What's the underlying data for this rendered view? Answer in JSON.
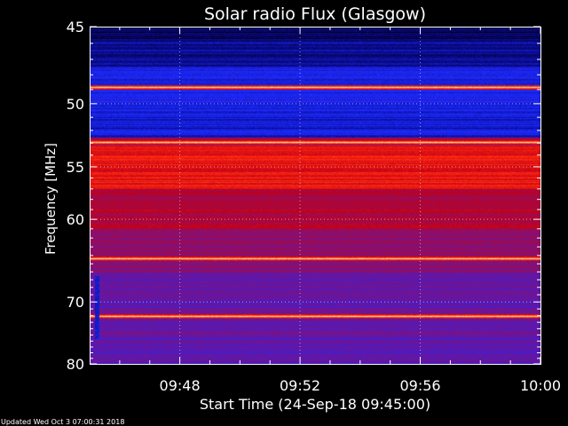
{
  "chart_data": {
    "type": "heatmap",
    "title": "Solar radio Flux (Glasgow)",
    "xlabel": "Start Time (24-Sep-18 09:45:00)",
    "ylabel": "Frequency [MHz]",
    "x_range": [
      "09:45",
      "10:00"
    ],
    "x_ticks": [
      {
        "minute": 48,
        "label": "09:48"
      },
      {
        "minute": 52,
        "label": "09:52"
      },
      {
        "minute": 56,
        "label": "09:56"
      },
      {
        "minute": 60,
        "label": "10:00"
      }
    ],
    "y_range": [
      45,
      80
    ],
    "y_scale": "reciprocal",
    "y_ticks": [
      45,
      50,
      55,
      60,
      70,
      80
    ],
    "colormap": [
      "#000020",
      "#0b0b90",
      "#1a2bff",
      "#5a18b0",
      "#8a1070",
      "#c00018",
      "#ff2810",
      "#ff8a2a",
      "#ffffff"
    ],
    "background_intensity": [
      {
        "from_mhz": 45.0,
        "to_mhz": 45.7,
        "level": 0.05
      },
      {
        "from_mhz": 45.7,
        "to_mhz": 47.5,
        "level": 0.12
      },
      {
        "from_mhz": 47.5,
        "to_mhz": 48.7,
        "level": 0.24
      },
      {
        "from_mhz": 48.7,
        "to_mhz": 50.0,
        "level": 0.24
      },
      {
        "from_mhz": 50.0,
        "to_mhz": 52.5,
        "level": 0.2
      },
      {
        "from_mhz": 52.5,
        "to_mhz": 53.2,
        "level": 0.55
      },
      {
        "from_mhz": 53.2,
        "to_mhz": 57.0,
        "level": 0.7
      },
      {
        "from_mhz": 57.0,
        "to_mhz": 61.0,
        "level": 0.58
      },
      {
        "from_mhz": 61.0,
        "to_mhz": 66.0,
        "level": 0.5
      },
      {
        "from_mhz": 66.0,
        "to_mhz": 80.0,
        "level": 0.4
      }
    ],
    "bright_lines_mhz": [
      48.85,
      52.9,
      64.3,
      72.1
    ],
    "burst": {
      "minute": 45.25,
      "from_mhz": 66.5,
      "to_mhz": 75.5
    },
    "grid": true
  },
  "footer": {
    "updated": "Updated Wed Oct  3 07:00:31 2018"
  }
}
